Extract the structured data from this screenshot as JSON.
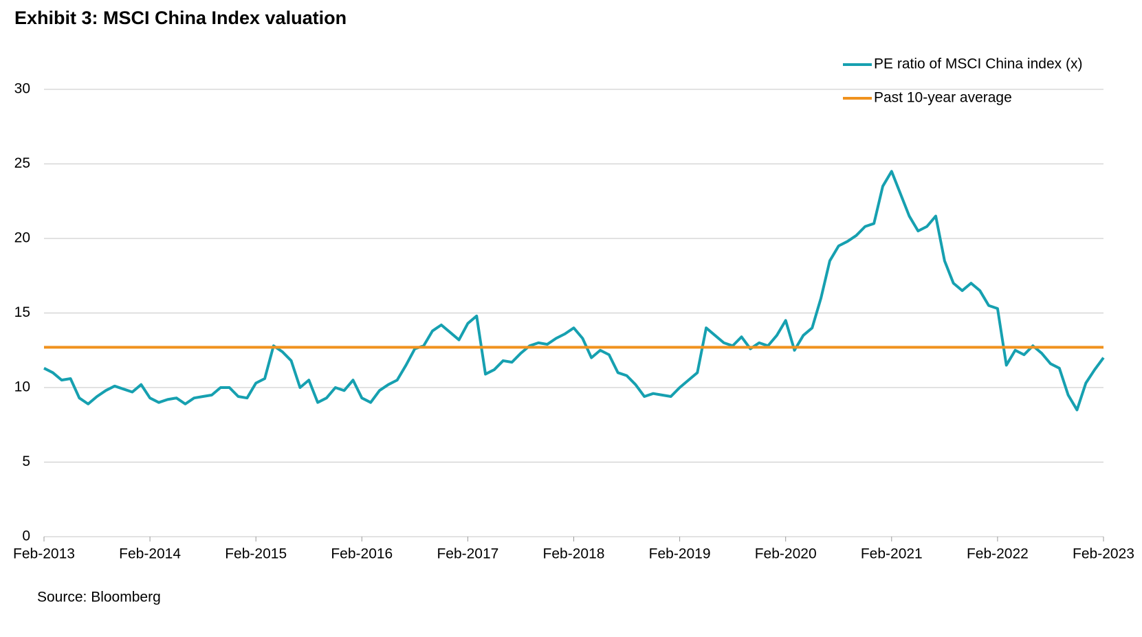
{
  "chart_data": {
    "type": "line",
    "title": "Exhibit 3: MSCI China Index valuation",
    "source": "Source: Bloomberg",
    "categories": [
      "Feb-2013",
      null,
      null,
      null,
      null,
      null,
      null,
      null,
      null,
      null,
      null,
      null,
      "Feb-2014",
      null,
      null,
      null,
      null,
      null,
      null,
      null,
      null,
      null,
      null,
      null,
      "Feb-2015",
      null,
      null,
      null,
      null,
      null,
      null,
      null,
      null,
      null,
      null,
      null,
      "Feb-2016",
      null,
      null,
      null,
      null,
      null,
      null,
      null,
      null,
      null,
      null,
      null,
      "Feb-2017",
      null,
      null,
      null,
      null,
      null,
      null,
      null,
      null,
      null,
      null,
      null,
      "Feb-2018",
      null,
      null,
      null,
      null,
      null,
      null,
      null,
      null,
      null,
      null,
      null,
      "Feb-2019",
      null,
      null,
      null,
      null,
      null,
      null,
      null,
      null,
      null,
      null,
      null,
      "Feb-2020",
      null,
      null,
      null,
      null,
      null,
      null,
      null,
      null,
      null,
      null,
      null,
      "Feb-2021",
      null,
      null,
      null,
      null,
      null,
      null,
      null,
      null,
      null,
      null,
      null,
      "Feb-2022",
      null,
      null,
      null,
      null,
      null,
      null,
      null,
      null,
      null,
      null,
      null,
      "Feb-2023"
    ],
    "series": [
      {
        "name": "PE ratio of MSCI China index (x)",
        "color": "#16a0b0",
        "values": [
          11.3,
          11.0,
          10.5,
          10.6,
          9.3,
          8.9,
          9.4,
          9.8,
          10.1,
          9.9,
          9.7,
          10.2,
          9.3,
          9.0,
          9.2,
          9.3,
          8.9,
          9.3,
          9.4,
          9.5,
          10.0,
          10.0,
          9.4,
          9.3,
          10.3,
          10.6,
          12.8,
          12.4,
          11.8,
          10.0,
          10.5,
          9.0,
          9.3,
          10.0,
          9.8,
          10.5,
          9.3,
          9.0,
          9.8,
          10.2,
          10.5,
          11.5,
          12.6,
          12.8,
          13.8,
          14.2,
          13.7,
          13.2,
          14.3,
          14.8,
          10.9,
          11.2,
          11.8,
          11.7,
          12.3,
          12.8,
          13.0,
          12.9,
          13.3,
          13.6,
          14.0,
          13.3,
          12.0,
          12.5,
          12.2,
          11.0,
          10.8,
          10.2,
          9.4,
          9.6,
          9.5,
          9.4,
          10.0,
          10.5,
          11.0,
          14.0,
          13.5,
          13.0,
          12.8,
          13.4,
          12.6,
          13.0,
          12.8,
          13.5,
          14.5,
          12.5,
          13.5,
          14.0,
          16.0,
          18.5,
          19.5,
          19.8,
          20.2,
          20.8,
          21.0,
          23.5,
          24.5,
          23.0,
          21.5,
          20.5,
          20.8,
          21.5,
          18.5,
          17.0,
          16.5,
          17.0,
          16.5,
          15.5,
          15.3,
          11.5,
          12.5,
          12.2,
          12.8,
          12.3,
          11.6,
          11.3,
          9.5,
          8.5,
          10.3,
          11.2,
          12.0
        ]
      },
      {
        "name": "Past 10-year average",
        "color": "#f0921e",
        "value": 12.7
      }
    ],
    "ylim": [
      0,
      30
    ],
    "yticks": [
      0,
      5,
      10,
      15,
      20,
      25,
      30
    ],
    "grid": true
  }
}
